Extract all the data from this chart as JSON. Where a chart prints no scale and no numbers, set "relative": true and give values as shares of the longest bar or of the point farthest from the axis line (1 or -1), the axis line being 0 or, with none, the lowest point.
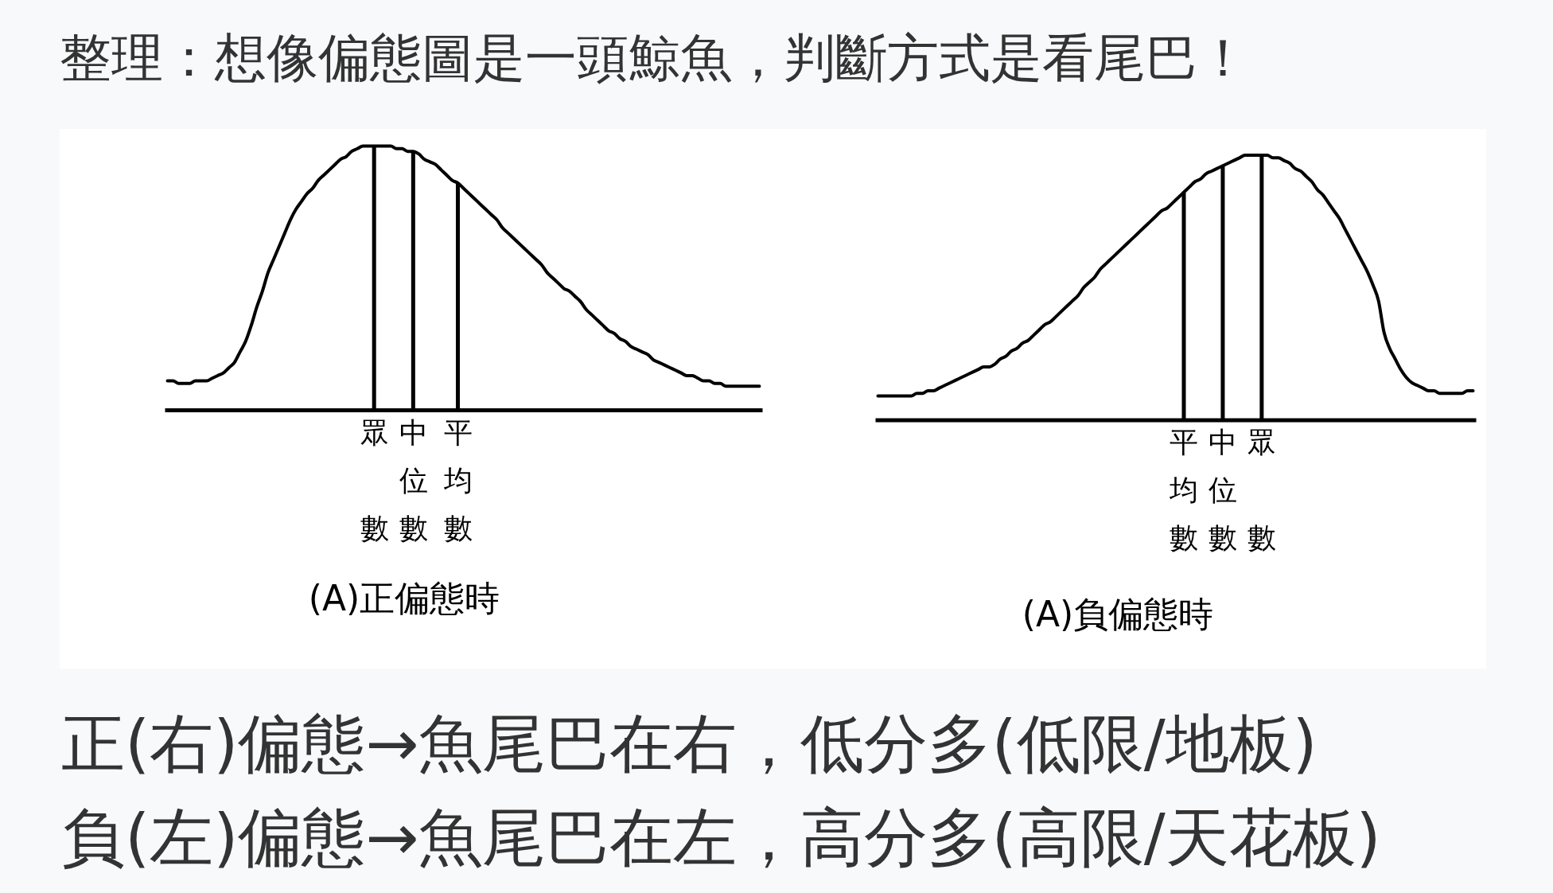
{
  "chart_data": [
    {
      "type": "line",
      "title": "整理：想像偏態圖是一頭鯨魚，判斷方式是看尾巴！",
      "xlabel": "(A)正偏態時",
      "relative": true,
      "categories": [
        null,
        null,
        null,
        null,
        null,
        null,
        null,
        null,
        null,
        null,
        null,
        null,
        null,
        null,
        null,
        null,
        null,
        null,
        null,
        null,
        null,
        null,
        null,
        null,
        null,
        null,
        null,
        null,
        null,
        null,
        null,
        null,
        null,
        null,
        null,
        null,
        null,
        "眾數",
        null,
        null,
        null,
        null,
        null,
        null,
        "中位數",
        null,
        null,
        null,
        null,
        null,
        null,
        null,
        "平均數",
        null,
        null,
        null,
        null,
        null,
        null,
        null,
        null,
        null,
        null,
        null,
        null,
        null,
        null,
        null,
        null,
        null,
        null,
        null,
        null,
        null,
        null,
        null,
        null,
        null,
        null,
        null,
        null,
        null,
        null,
        null,
        null,
        null,
        null,
        null,
        null,
        null,
        null,
        null,
        null,
        null,
        null,
        null,
        null,
        null,
        null,
        null,
        null,
        null,
        null,
        null,
        null,
        null,
        null
      ],
      "series": [
        {
          "color": "#000000",
          "values": [
            0.11,
            0.11,
            0.1,
            0.1,
            0.1,
            0.11,
            0.11,
            0.11,
            0.12,
            0.13,
            0.14,
            0.16,
            0.18,
            0.22,
            0.26,
            0.32,
            0.39,
            0.45,
            0.52,
            0.57,
            0.62,
            0.67,
            0.72,
            0.76,
            0.79,
            0.82,
            0.84,
            0.87,
            0.89,
            0.91,
            0.93,
            0.95,
            0.96,
            0.98,
            0.99,
            1,
            1,
            1,
            1,
            1,
            1,
            0.99,
            0.99,
            0.98,
            0.98,
            0.97,
            0.95,
            0.94,
            0.93,
            0.91,
            0.89,
            0.87,
            0.86,
            0.84,
            0.82,
            0.8,
            0.78,
            0.76,
            0.74,
            0.72,
            0.69,
            0.67,
            0.65,
            0.63,
            0.61,
            0.59,
            0.57,
            0.55,
            0.52,
            0.5,
            0.48,
            0.46,
            0.45,
            0.43,
            0.41,
            0.38,
            0.36,
            0.34,
            0.32,
            0.3,
            0.29,
            0.27,
            0.26,
            0.24,
            0.23,
            0.22,
            0.21,
            0.19,
            0.18,
            0.17,
            0.16,
            0.15,
            0.14,
            0.13,
            0.13,
            0.12,
            0.11,
            0.11,
            0.1,
            0.1,
            0.09,
            0.09,
            0.09,
            0.09,
            0.09,
            0.09,
            0.09
          ]
        },
        {
          "type": "bar",
          "color": "#000000",
          "values": [
            null,
            null,
            null,
            null,
            null,
            null,
            null,
            null,
            null,
            null,
            null,
            null,
            null,
            null,
            null,
            null,
            null,
            null,
            null,
            null,
            null,
            null,
            null,
            null,
            null,
            null,
            null,
            null,
            null,
            null,
            null,
            null,
            null,
            null,
            null,
            null,
            null,
            1,
            null,
            null,
            null,
            null,
            null,
            null,
            0.98,
            null,
            null,
            null,
            null,
            null,
            null,
            null,
            0.86,
            null,
            null,
            null,
            null,
            null,
            null,
            null,
            null,
            null,
            null,
            null,
            null,
            null,
            null,
            null,
            null,
            null,
            null,
            null,
            null,
            null,
            null,
            null,
            null,
            null,
            null,
            null,
            null,
            null,
            null,
            null,
            null,
            null,
            null,
            null,
            null,
            null,
            null,
            null,
            null,
            null,
            null,
            null,
            null,
            null,
            null,
            null,
            null,
            null,
            null,
            null,
            null,
            null,
            null
          ]
        }
      ],
      "annotations": [
        "正(右)偏態→魚尾巴在右，低分多(低限/地板)"
      ]
    },
    {
      "type": "line",
      "xlabel": "(A)負偏態時",
      "relative": true,
      "categories": [
        null,
        null,
        null,
        null,
        null,
        null,
        null,
        null,
        null,
        null,
        null,
        null,
        null,
        null,
        null,
        null,
        null,
        null,
        null,
        null,
        null,
        null,
        null,
        null,
        null,
        null,
        null,
        null,
        null,
        null,
        null,
        null,
        null,
        null,
        null,
        null,
        null,
        null,
        null,
        null,
        null,
        null,
        null,
        null,
        null,
        null,
        null,
        null,
        null,
        null,
        null,
        null,
        null,
        null,
        null,
        "平均數",
        null,
        null,
        null,
        null,
        null,
        null,
        "中位數",
        null,
        null,
        null,
        null,
        null,
        null,
        "眾數",
        null,
        null,
        null,
        null,
        null,
        null,
        null,
        null,
        null,
        null,
        null,
        null,
        null,
        null,
        null,
        null,
        null,
        null,
        null,
        null,
        null,
        null,
        null,
        null,
        null,
        null,
        null,
        null,
        null,
        null,
        null,
        null,
        null,
        null,
        null,
        null,
        null,
        null
      ],
      "series": [
        {
          "color": "#000000",
          "values": [
            0.09,
            0.09,
            0.09,
            0.09,
            0.09,
            0.09,
            0.09,
            0.1,
            0.1,
            0.11,
            0.11,
            0.12,
            0.13,
            0.14,
            0.15,
            0.16,
            0.17,
            0.18,
            0.19,
            0.2,
            0.2,
            0.21,
            0.23,
            0.24,
            0.26,
            0.27,
            0.29,
            0.3,
            0.32,
            0.34,
            0.36,
            0.37,
            0.39,
            0.41,
            0.43,
            0.45,
            0.47,
            0.5,
            0.52,
            0.54,
            0.57,
            0.59,
            0.61,
            0.63,
            0.65,
            0.67,
            0.69,
            0.71,
            0.73,
            0.75,
            0.77,
            0.79,
            0.8,
            0.82,
            0.84,
            0.86,
            0.88,
            0.9,
            0.91,
            0.93,
            0.94,
            0.95,
            0.96,
            0.97,
            0.98,
            0.99,
            1,
            1,
            1,
            1,
            1,
            0.99,
            0.99,
            0.98,
            0.97,
            0.95,
            0.94,
            0.92,
            0.9,
            0.87,
            0.85,
            0.82,
            0.79,
            0.76,
            0.72,
            0.68,
            0.64,
            0.6,
            0.56,
            0.51,
            0.45,
            0.33,
            0.27,
            0.23,
            0.19,
            0.16,
            0.14,
            0.13,
            0.12,
            0.11,
            0.11,
            0.1,
            0.1,
            0.1,
            0.1,
            0.1,
            0.11,
            0.11
          ]
        },
        {
          "type": "bar",
          "color": "#000000",
          "values": [
            null,
            null,
            null,
            null,
            null,
            null,
            null,
            null,
            null,
            null,
            null,
            null,
            null,
            null,
            null,
            null,
            null,
            null,
            null,
            null,
            null,
            null,
            null,
            null,
            null,
            null,
            null,
            null,
            null,
            null,
            null,
            null,
            null,
            null,
            null,
            null,
            null,
            null,
            null,
            null,
            null,
            null,
            null,
            null,
            null,
            null,
            null,
            null,
            null,
            null,
            null,
            null,
            null,
            null,
            null,
            0.86,
            null,
            null,
            null,
            null,
            null,
            null,
            0.96,
            null,
            null,
            null,
            null,
            null,
            null,
            1,
            null,
            null,
            null,
            null,
            null,
            null,
            null,
            null,
            null,
            null,
            null,
            null,
            null,
            null,
            null,
            null,
            null,
            null,
            null,
            null,
            null,
            null,
            null,
            null,
            null,
            null,
            null,
            null,
            null,
            null,
            null,
            null,
            null,
            null,
            null,
            null,
            null,
            null
          ]
        }
      ],
      "annotations": [
        "負(左)偏態→魚尾巴在左，高分多(高限/天花板)"
      ]
    }
  ]
}
